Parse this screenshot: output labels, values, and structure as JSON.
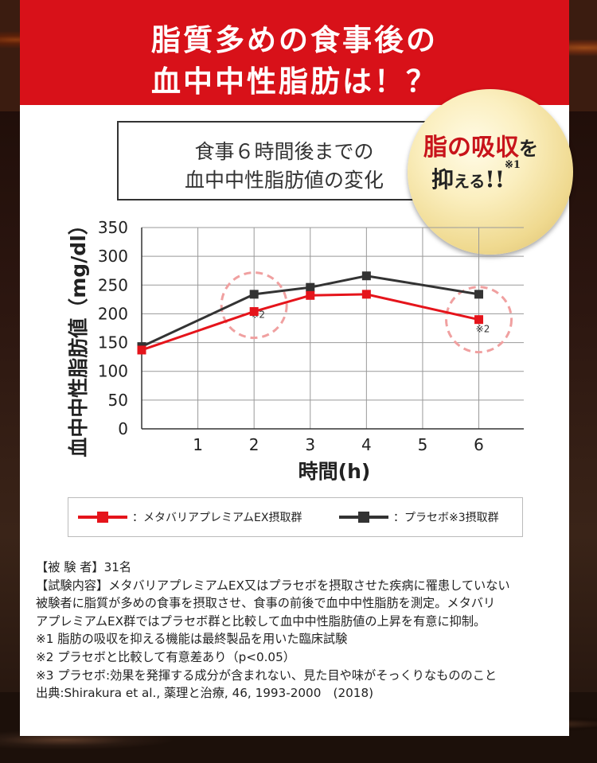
{
  "header": {
    "line1": "脂質多めの食事後の",
    "line2": "血中中性脂肪は！？"
  },
  "box_title": {
    "line1": "食事６時間後までの",
    "line2": "血中中性脂肪値の変化"
  },
  "badge": {
    "part1": "脂の吸収",
    "part1_particle": "を",
    "part2": "抑",
    "part2_small": "える",
    "part2_end": "!!",
    "note": "※1"
  },
  "colors": {
    "header_red": "#d81119",
    "series_red": "#e5141b",
    "series_dark": "#333333",
    "annotation_circle": "#f0a0a0"
  },
  "chart_data": {
    "type": "line",
    "xlabel": "時間(h)",
    "ylabel": "血中中性脂肪値（mg/dl）",
    "xlim": [
      0,
      6.8
    ],
    "ylim": [
      0,
      350
    ],
    "xticks": [
      1,
      2,
      3,
      4,
      5,
      6
    ],
    "yticks": [
      0,
      50,
      100,
      150,
      200,
      250,
      300,
      350
    ],
    "grid": true,
    "series": [
      {
        "name": "：メタバリアプレミアムEX摂取群",
        "color": "#e5141b",
        "x": [
          0,
          2,
          3,
          4,
          6
        ],
        "values": [
          137,
          204,
          232,
          234,
          190
        ]
      },
      {
        "name": "：プラセボ※3摂取群",
        "color": "#333333",
        "x": [
          0,
          2,
          3,
          4,
          6
        ],
        "values": [
          143,
          234,
          246,
          266,
          234
        ]
      }
    ],
    "annotations": [
      {
        "x": 2,
        "y": 215,
        "text": "※2"
      },
      {
        "x": 6,
        "y": 190,
        "text": "※2"
      }
    ]
  },
  "footnotes": [
    "【被 験 者】31名",
    "【試験内容】メタバリアプレミアムEX又はプラセボを摂取させた疾病に罹患していない",
    "被験者に脂質が多めの食事を摂取させ、食事の前後で血中中性脂肪を測定。メタバリ",
    "アプレミアムEX群ではプラセボ群と比較して血中中性脂肪値の上昇を有意に抑制。",
    "※1 脂肪の吸収を抑える機能は最終製品を用いた臨床試験",
    "※2 プラセボと比較して有意差あり（p<0.05）",
    "※3 プラセボ:効果を発揮する成分が含まれない、見た目や味がそっくりなもののこと",
    "出典:Shirakura et al., 薬理と治療, 46, 1993-2000　(2018)"
  ]
}
